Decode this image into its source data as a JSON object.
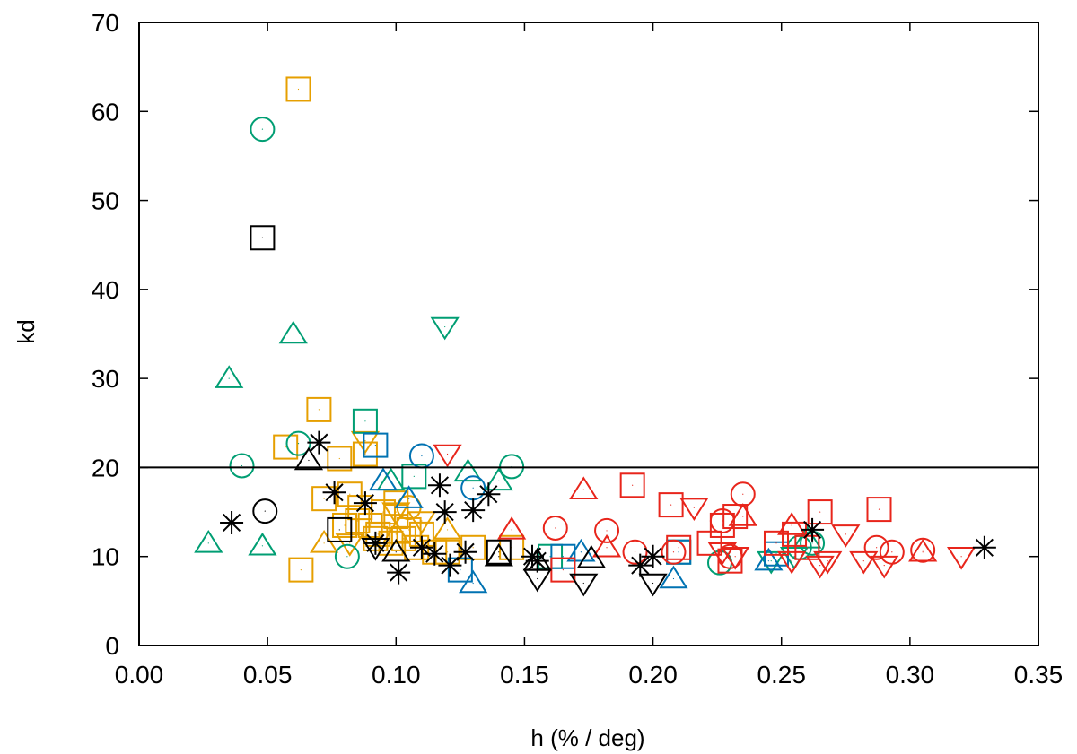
{
  "chart_data": {
    "type": "scatter",
    "title": "",
    "xlabel": "h (% / deg)",
    "ylabel": "kd",
    "xlim": [
      0.0,
      0.35
    ],
    "ylim": [
      0,
      70
    ],
    "x_ticks": [
      "0.00",
      "0.05",
      "0.10",
      "0.15",
      "0.20",
      "0.25",
      "0.30",
      "0.35"
    ],
    "y_ticks": [
      "0",
      "10",
      "20",
      "30",
      "40",
      "50",
      "60",
      "70"
    ],
    "x_tick_values": [
      0.0,
      0.05,
      0.1,
      0.15,
      0.2,
      0.25,
      0.3,
      0.35
    ],
    "y_tick_values": [
      0,
      10,
      20,
      30,
      40,
      50,
      60,
      70
    ],
    "hline": 20,
    "grid": false,
    "colors": {
      "orange": "#e69f00",
      "green": "#009e73",
      "blue": "#0072b2",
      "red": "#e8251b",
      "black": "#000000"
    },
    "series": [
      {
        "name": "orange-square",
        "color": "#e69f00",
        "marker": "square",
        "x": [
          0.062,
          0.07,
          0.057,
          0.078,
          0.088,
          0.072,
          0.082,
          0.085,
          0.09,
          0.095,
          0.1,
          0.105,
          0.11,
          0.092,
          0.098,
          0.103,
          0.108,
          0.115,
          0.12,
          0.13,
          0.145,
          0.063,
          0.086,
          0.1,
          0.093,
          0.08
        ],
        "y": [
          62.5,
          26.5,
          22.3,
          21.0,
          21.5,
          16.5,
          17.0,
          14.0,
          13.5,
          15.0,
          14.5,
          13.0,
          12.5,
          12.0,
          11.5,
          12.0,
          11.0,
          10.5,
          10.5,
          11.0,
          11.0,
          8.5,
          15.5,
          16.0,
          12.5,
          13.5
        ]
      },
      {
        "name": "orange-triangle-down",
        "color": "#e69f00",
        "marker": "triangle-down",
        "x": [
          0.088,
          0.082,
          0.1,
          0.11
        ],
        "y": [
          23.0,
          11.5,
          15.0,
          14.0
        ]
      },
      {
        "name": "orange-triangle-up",
        "color": "#e69f00",
        "marker": "triangle-up",
        "x": [
          0.072,
          0.1,
          0.12
        ],
        "y": [
          11.5,
          12.5,
          13.0
        ]
      },
      {
        "name": "orange-circle",
        "color": "#e69f00",
        "marker": "circle",
        "x": [
          0.105
        ],
        "y": [
          15.5
        ]
      },
      {
        "name": "green-circle",
        "color": "#009e73",
        "marker": "circle",
        "x": [
          0.048,
          0.04,
          0.145,
          0.081,
          0.062,
          0.226,
          0.262,
          0.257
        ],
        "y": [
          58.0,
          20.2,
          20.1,
          10.0,
          22.7,
          9.3,
          11.5,
          11.0
        ]
      },
      {
        "name": "green-triangle-up",
        "color": "#009e73",
        "marker": "triangle-up",
        "x": [
          0.06,
          0.035,
          0.027,
          0.048,
          0.128,
          0.14,
          0.098,
          0.26
        ],
        "y": [
          35.0,
          30.0,
          11.5,
          11.2,
          19.5,
          18.5,
          18.5,
          12.0
        ]
      },
      {
        "name": "green-square",
        "color": "#009e73",
        "marker": "square",
        "x": [
          0.088,
          0.107,
          0.16,
          0.21
        ],
        "y": [
          25.2,
          19.0,
          10.0,
          10.5
        ]
      },
      {
        "name": "green-triangle-down",
        "color": "#009e73",
        "marker": "triangle-down",
        "x": [
          0.119,
          0.246,
          0.255
        ],
        "y": [
          35.8,
          9.5,
          10.0
        ]
      },
      {
        "name": "blue-circle",
        "color": "#0072b2",
        "marker": "circle",
        "x": [
          0.11,
          0.13
        ],
        "y": [
          21.3,
          17.7
        ]
      },
      {
        "name": "blue-square",
        "color": "#0072b2",
        "marker": "square",
        "x": [
          0.092,
          0.125,
          0.165,
          0.21,
          0.248
        ],
        "y": [
          22.5,
          8.5,
          10.0,
          10.5,
          10.3
        ]
      },
      {
        "name": "blue-triangle-up",
        "color": "#0072b2",
        "marker": "triangle-up",
        "x": [
          0.095,
          0.105,
          0.13,
          0.172,
          0.208,
          0.245
        ],
        "y": [
          18.5,
          16.5,
          7.0,
          10.5,
          7.5,
          9.5
        ]
      },
      {
        "name": "red-triangle-down",
        "color": "#e8251b",
        "marker": "triangle-down",
        "x": [
          0.12,
          0.216,
          0.232,
          0.254,
          0.268,
          0.275,
          0.29,
          0.32,
          0.265,
          0.282,
          0.227
        ],
        "y": [
          21.5,
          15.5,
          10.0,
          9.5,
          9.5,
          12.5,
          9.0,
          10.0,
          9.0,
          9.5,
          10.5
        ]
      },
      {
        "name": "red-triangle-up",
        "color": "#e8251b",
        "marker": "triangle-up",
        "x": [
          0.145,
          0.173,
          0.182,
          0.235,
          0.254,
          0.305
        ],
        "y": [
          13.0,
          17.5,
          11.0,
          14.5,
          13.5,
          10.5
        ]
      },
      {
        "name": "red-square",
        "color": "#e8251b",
        "marker": "square",
        "x": [
          0.192,
          0.207,
          0.21,
          0.222,
          0.227,
          0.232,
          0.248,
          0.26,
          0.265,
          0.288,
          0.165,
          0.23,
          0.255
        ],
        "y": [
          18.0,
          15.8,
          11.0,
          11.5,
          13.5,
          14.5,
          11.5,
          11.0,
          15.0,
          15.3,
          8.5,
          9.5,
          12.5
        ]
      },
      {
        "name": "red-circle",
        "color": "#e8251b",
        "marker": "circle",
        "x": [
          0.162,
          0.182,
          0.193,
          0.208,
          0.227,
          0.235,
          0.287,
          0.293,
          0.305,
          0.23
        ],
        "y": [
          13.2,
          12.9,
          10.5,
          10.5,
          14.0,
          17.0,
          11.0,
          10.5,
          10.7,
          10.0
        ]
      },
      {
        "name": "black-asterisk",
        "color": "#000000",
        "marker": "asterisk",
        "x": [
          0.036,
          0.07,
          0.076,
          0.088,
          0.092,
          0.101,
          0.11,
          0.115,
          0.117,
          0.119,
          0.121,
          0.127,
          0.13,
          0.136,
          0.153,
          0.155,
          0.195,
          0.2,
          0.262,
          0.329
        ],
        "y": [
          13.8,
          22.8,
          17.2,
          16.0,
          11.5,
          8.2,
          11.0,
          10.3,
          18.0,
          15.0,
          9.0,
          10.5,
          15.2,
          17.0,
          10.0,
          9.5,
          9.0,
          10.0,
          13.0,
          11.0
        ]
      },
      {
        "name": "black-square",
        "color": "#000000",
        "marker": "square",
        "x": [
          0.048,
          0.078,
          0.14
        ],
        "y": [
          45.8,
          13.0,
          10.5
        ]
      },
      {
        "name": "black-circle",
        "color": "#000000",
        "marker": "circle",
        "x": [
          0.049
        ],
        "y": [
          15.1
        ]
      },
      {
        "name": "black-triangle-up",
        "color": "#000000",
        "marker": "triangle-up",
        "x": [
          0.066,
          0.1,
          0.14,
          0.176,
          0.155
        ],
        "y": [
          20.8,
          10.5,
          10.0,
          9.8,
          9.5
        ]
      },
      {
        "name": "black-triangle-down",
        "color": "#000000",
        "marker": "triangle-down",
        "x": [
          0.092,
          0.155,
          0.173,
          0.2
        ],
        "y": [
          11.0,
          7.5,
          7.0,
          7.0
        ]
      }
    ]
  }
}
